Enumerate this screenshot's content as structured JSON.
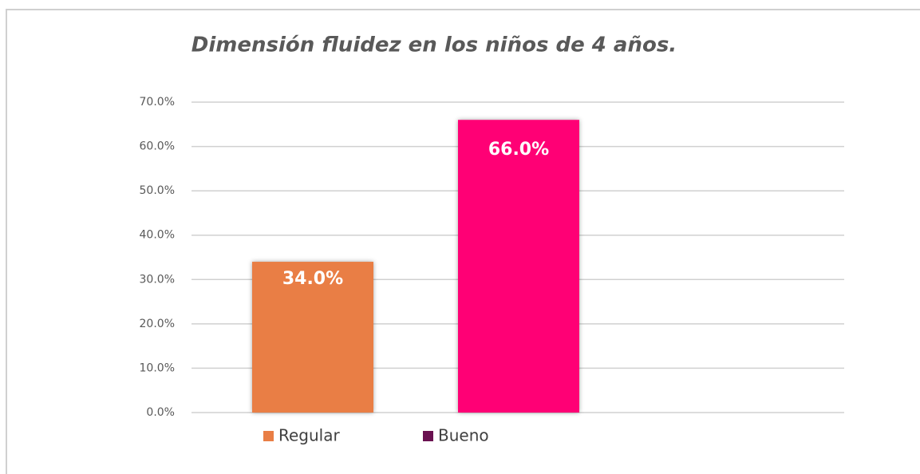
{
  "chart_data": {
    "type": "bar",
    "title": "Dimensión fluidez en los niños de 4 años.",
    "series": [
      {
        "name": "Regular",
        "color": "#e97e45",
        "legend_color": "#e97e45",
        "values": [
          34
        ],
        "value_labels": [
          "34.0%"
        ]
      },
      {
        "name": "Bueno",
        "color": "#ff0074",
        "legend_color": "#6a1150",
        "values": [
          66
        ],
        "value_labels": [
          "66.0%"
        ]
      }
    ],
    "ylim": [
      0,
      70
    ],
    "yticks": [
      {
        "value": 0,
        "label": "0.0%"
      },
      {
        "value": 10,
        "label": "10.0%"
      },
      {
        "value": 20,
        "label": "20.0%"
      },
      {
        "value": 30,
        "label": "30.0%"
      },
      {
        "value": 40,
        "label": "40.0%"
      },
      {
        "value": 50,
        "label": "50.0%"
      },
      {
        "value": 60,
        "label": "60.0%"
      },
      {
        "value": 70,
        "label": "70.0%"
      }
    ],
    "grid": true,
    "legend": "bottom"
  }
}
